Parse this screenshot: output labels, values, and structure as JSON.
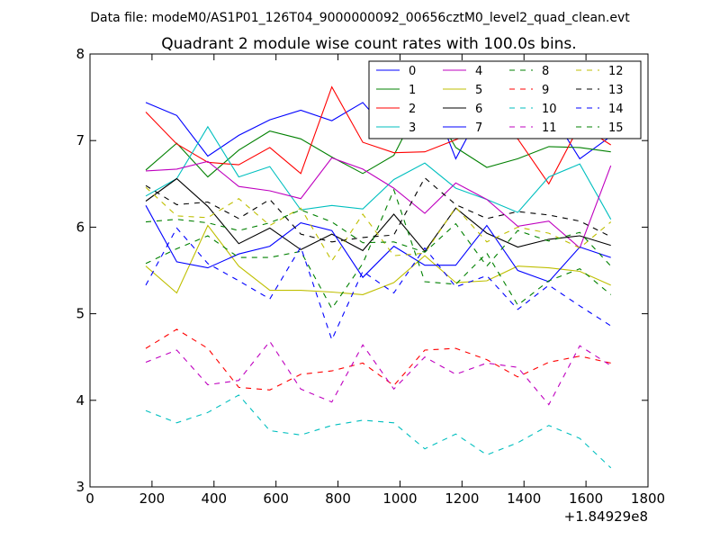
{
  "suptitle": "Data file: modeM0/AS1P01_126T04_9000000092_00656cztM0_level2_quad_clean.evt",
  "chart_data": {
    "type": "line",
    "title": "Quadrant 2 module wise count rates with 100.0s bins.",
    "xlabel": "",
    "ylabel": "",
    "x_offset_label": "+1.84929e8",
    "xlim": [
      0,
      1800
    ],
    "ylim": [
      3,
      8
    ],
    "x_ticks": [
      "0",
      "200",
      "400",
      "600",
      "800",
      "1000",
      "1200",
      "1400",
      "1600",
      "1800"
    ],
    "y_ticks": [
      "3",
      "4",
      "5",
      "6",
      "7",
      "8"
    ],
    "grid": false,
    "legend_position": "top-right",
    "x": [
      180,
      280,
      380,
      480,
      580,
      680,
      780,
      880,
      980,
      1080,
      1180,
      1280,
      1380,
      1480,
      1580,
      1680
    ],
    "series": [
      {
        "name": "0",
        "color": "#0000ff",
        "dash": false,
        "values": [
          7.44,
          7.29,
          6.82,
          7.06,
          7.24,
          7.35,
          7.23,
          7.44,
          7.03,
          7.71,
          6.79,
          7.46,
          7.19,
          7.36,
          6.79,
          7.05
        ]
      },
      {
        "name": "1",
        "color": "#008000",
        "dash": false,
        "values": [
          6.66,
          6.97,
          6.58,
          6.89,
          7.11,
          7.02,
          6.81,
          6.62,
          6.83,
          7.53,
          6.92,
          6.69,
          6.79,
          6.93,
          6.92,
          6.87
        ]
      },
      {
        "name": "2",
        "color": "#ff0000",
        "dash": false,
        "values": [
          7.33,
          6.96,
          6.75,
          6.72,
          6.92,
          6.62,
          7.62,
          6.98,
          6.86,
          6.87,
          7.01,
          7.15,
          7.02,
          6.5,
          7.18,
          6.95
        ]
      },
      {
        "name": "3",
        "color": "#00bfbf",
        "dash": false,
        "values": [
          6.36,
          6.56,
          7.16,
          6.58,
          6.7,
          6.2,
          6.25,
          6.21,
          6.55,
          6.74,
          6.45,
          6.32,
          6.17,
          6.58,
          6.73,
          6.09
        ]
      },
      {
        "name": "4",
        "color": "#bf00bf",
        "dash": false,
        "values": [
          6.65,
          6.67,
          6.76,
          6.47,
          6.42,
          6.33,
          6.8,
          6.67,
          6.45,
          6.16,
          6.51,
          6.32,
          6.01,
          6.07,
          5.76,
          6.71
        ]
      },
      {
        "name": "5",
        "color": "#bfbf00",
        "dash": false,
        "values": [
          5.55,
          5.24,
          6.02,
          5.55,
          5.27,
          5.27,
          5.25,
          5.22,
          5.36,
          5.67,
          5.36,
          5.38,
          5.55,
          5.53,
          5.49,
          5.33
        ]
      },
      {
        "name": "6",
        "color": "#000000",
        "dash": false,
        "values": [
          6.3,
          6.56,
          6.24,
          5.81,
          5.99,
          5.74,
          5.92,
          5.73,
          6.15,
          5.72,
          6.22,
          5.93,
          5.77,
          5.86,
          5.9,
          5.79
        ]
      },
      {
        "name": "7",
        "color": "#0000ff",
        "dash": false,
        "values": [
          6.25,
          5.6,
          5.53,
          5.69,
          5.78,
          6.05,
          5.96,
          5.42,
          5.78,
          5.56,
          5.56,
          6.02,
          5.5,
          5.37,
          5.77,
          5.65
        ]
      },
      {
        "name": "8",
        "color": "#008000",
        "dash": true,
        "values": [
          5.58,
          5.75,
          5.9,
          5.65,
          5.65,
          5.72,
          5.06,
          5.58,
          6.43,
          5.37,
          5.34,
          5.7,
          5.1,
          5.38,
          5.52,
          5.22
        ]
      },
      {
        "name": "9",
        "color": "#ff0000",
        "dash": true,
        "values": [
          4.6,
          4.82,
          4.6,
          4.15,
          4.12,
          4.3,
          4.34,
          4.43,
          4.17,
          4.58,
          4.6,
          4.47,
          4.27,
          4.44,
          4.51,
          4.43
        ]
      },
      {
        "name": "10",
        "color": "#00bfbf",
        "dash": true,
        "values": [
          3.88,
          3.74,
          3.86,
          4.06,
          3.65,
          3.6,
          3.71,
          3.77,
          3.74,
          3.44,
          3.61,
          3.37,
          3.51,
          3.71,
          3.56,
          3.22
        ]
      },
      {
        "name": "11",
        "color": "#bf00bf",
        "dash": true,
        "values": [
          4.44,
          4.58,
          4.18,
          4.23,
          4.68,
          4.13,
          3.98,
          4.64,
          4.13,
          4.5,
          4.3,
          4.43,
          4.38,
          3.95,
          4.63,
          4.4
        ]
      },
      {
        "name": "12",
        "color": "#bfbf00",
        "dash": true,
        "values": [
          6.46,
          6.13,
          6.11,
          6.33,
          6.02,
          6.22,
          5.61,
          6.15,
          5.67,
          5.7,
          6.23,
          5.83,
          6.0,
          5.93,
          5.76,
          6.06
        ]
      },
      {
        "name": "13",
        "color": "#000000",
        "dash": true,
        "values": [
          6.48,
          6.26,
          6.29,
          6.1,
          6.32,
          5.92,
          5.83,
          5.88,
          5.91,
          6.57,
          6.26,
          6.1,
          6.18,
          6.14,
          6.07,
          5.89
        ]
      },
      {
        "name": "14",
        "color": "#0000ff",
        "dash": true,
        "values": [
          5.33,
          5.99,
          5.58,
          5.38,
          5.17,
          5.77,
          4.7,
          5.49,
          5.24,
          5.76,
          5.31,
          5.44,
          5.05,
          5.33,
          5.09,
          4.86
        ]
      },
      {
        "name": "15",
        "color": "#008000",
        "dash": true,
        "values": [
          6.06,
          6.09,
          6.05,
          5.96,
          6.05,
          6.2,
          6.06,
          5.82,
          5.83,
          5.71,
          6.04,
          5.55,
          5.96,
          5.84,
          5.94,
          5.55
        ]
      }
    ]
  }
}
